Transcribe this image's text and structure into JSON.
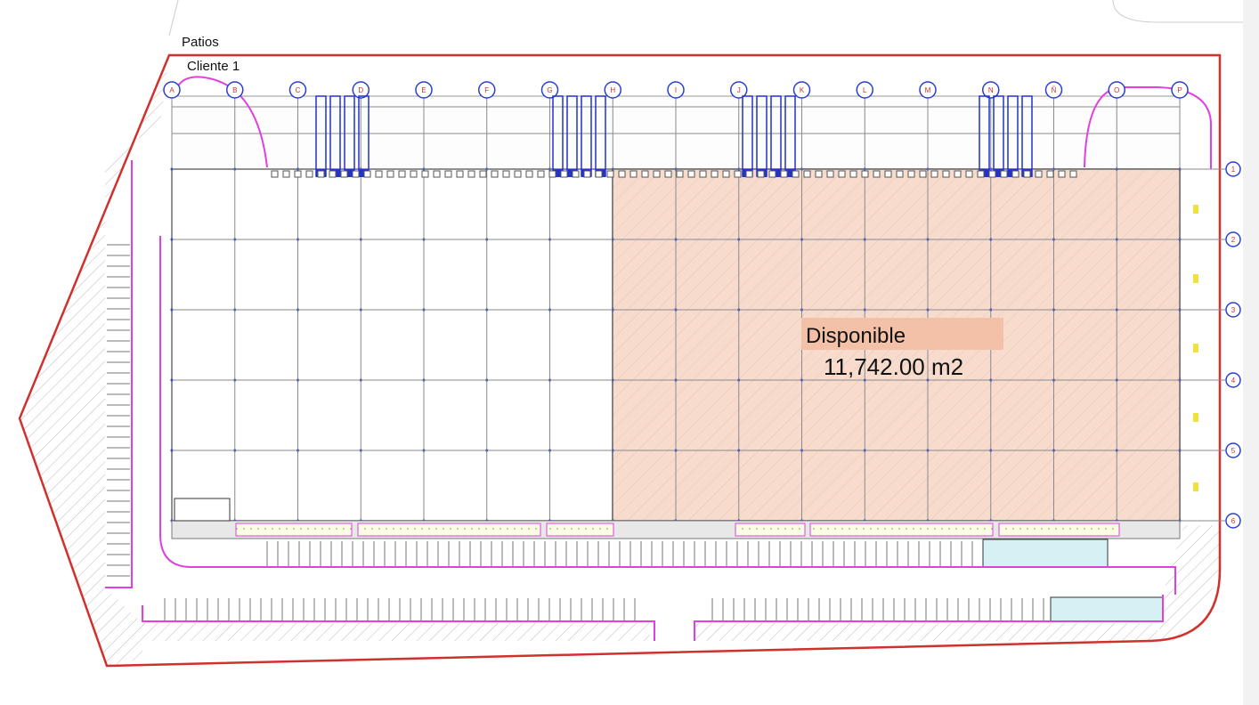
{
  "header": {
    "title": "Patios",
    "client": "Cliente 1"
  },
  "columns": [
    "A",
    "B",
    "C",
    "D",
    "E",
    "F",
    "G",
    "H",
    "I",
    "J",
    "K",
    "L",
    "M",
    "N",
    "Ñ",
    "O",
    "P"
  ],
  "rows": [
    "1",
    "2",
    "3",
    "4",
    "5",
    "6"
  ],
  "area": {
    "label": "Disponible",
    "size": "11,742.00 m2"
  }
}
